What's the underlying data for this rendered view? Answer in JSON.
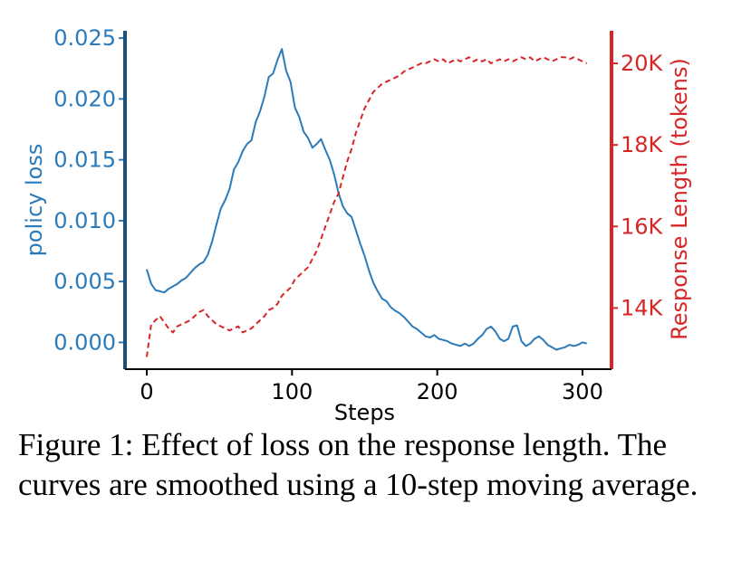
{
  "figure": {
    "caption": "Figure 1: Effect of loss on the response length. The curves are smoothed using a 10-step moving average."
  },
  "chart_data": {
    "type": "line",
    "xlabel": "Steps",
    "ylabel_left": "policy loss",
    "ylabel_right": "Response Length (tokens)",
    "xlim": [
      -15,
      320
    ],
    "ylim_left": [
      -0.0022,
      0.0256
    ],
    "ylim_right": [
      12500,
      20800
    ],
    "x_ticks": [
      0,
      100,
      200,
      300
    ],
    "x_tick_labels": [
      "0",
      "100",
      "200",
      "300"
    ],
    "y_left_ticks": [
      0.0,
      0.005,
      0.01,
      0.015,
      0.02,
      0.025
    ],
    "y_left_tick_labels": [
      "0.000",
      "0.005",
      "0.010",
      "0.015",
      "0.020",
      "0.025"
    ],
    "y_right_ticks": [
      14000,
      16000,
      18000,
      20000
    ],
    "y_right_tick_labels": [
      "14K",
      "16K",
      "18K",
      "20K"
    ],
    "grid": false,
    "colors": {
      "loss": "#2b7bba",
      "length": "#d62728"
    },
    "series": [
      {
        "axis": "left",
        "style": "solid",
        "x": [
          0,
          3,
          6,
          9,
          12,
          15,
          18,
          21,
          24,
          27,
          30,
          33,
          36,
          39,
          42,
          45,
          48,
          51,
          54,
          57,
          60,
          63,
          66,
          69,
          72,
          75,
          78,
          81,
          84,
          87,
          90,
          93,
          96,
          99,
          102,
          105,
          108,
          111,
          114,
          117,
          120,
          123,
          126,
          129,
          132,
          135,
          138,
          141,
          144,
          147,
          150,
          153,
          156,
          159,
          162,
          165,
          168,
          171,
          174,
          177,
          180,
          183,
          186,
          189,
          192,
          195,
          198,
          201,
          204,
          207,
          210,
          213,
          216,
          219,
          222,
          225,
          228,
          231,
          234,
          237,
          240,
          243,
          246,
          249,
          252,
          255,
          258,
          261,
          264,
          267,
          270,
          273,
          276,
          279,
          282,
          285,
          288,
          291,
          294,
          297,
          300,
          303
        ],
        "values": [
          0.006,
          0.0048,
          0.0043,
          0.0042,
          0.0041,
          0.0044,
          0.0046,
          0.0048,
          0.0051,
          0.0053,
          0.0057,
          0.0061,
          0.0064,
          0.0066,
          0.0072,
          0.0083,
          0.0097,
          0.011,
          0.0117,
          0.0126,
          0.0142,
          0.0148,
          0.0157,
          0.0163,
          0.0166,
          0.0181,
          0.019,
          0.0202,
          0.0218,
          0.0221,
          0.0232,
          0.0241,
          0.0223,
          0.0214,
          0.0193,
          0.0185,
          0.0173,
          0.0168,
          0.016,
          0.0163,
          0.0167,
          0.0158,
          0.015,
          0.0138,
          0.0123,
          0.0112,
          0.0106,
          0.0103,
          0.0092,
          0.0081,
          0.0071,
          0.0059,
          0.0049,
          0.0042,
          0.0036,
          0.0034,
          0.0029,
          0.0026,
          0.0024,
          0.0021,
          0.0017,
          0.0013,
          0.0011,
          0.0008,
          0.0005,
          0.0004,
          0.0006,
          0.0003,
          0.0002,
          0.0001,
          -0.0001,
          -0.0002,
          -0.0003,
          -0.0001,
          -0.0003,
          -0.0001,
          0.0003,
          0.0006,
          0.0011,
          0.0013,
          0.0009,
          0.0003,
          0.0001,
          0.0003,
          0.0013,
          0.0014,
          0.0001,
          -0.0003,
          -0.0001,
          0.0003,
          0.0005,
          0.0002,
          -0.0002,
          -0.0004,
          -0.0006,
          -0.0005,
          -0.0004,
          -0.0002,
          -0.0003,
          -0.0002,
          0.0,
          -0.0001
        ]
      },
      {
        "axis": "right",
        "style": "dashed",
        "x": [
          0,
          3,
          6,
          9,
          12,
          15,
          18,
          21,
          24,
          27,
          30,
          33,
          36,
          39,
          42,
          45,
          48,
          51,
          54,
          57,
          60,
          63,
          66,
          69,
          72,
          75,
          78,
          81,
          84,
          87,
          90,
          93,
          96,
          99,
          102,
          105,
          108,
          111,
          114,
          117,
          120,
          123,
          126,
          129,
          132,
          135,
          138,
          141,
          144,
          147,
          150,
          153,
          156,
          159,
          162,
          165,
          168,
          171,
          174,
          177,
          180,
          183,
          186,
          189,
          192,
          195,
          198,
          201,
          204,
          207,
          210,
          213,
          216,
          219,
          222,
          225,
          228,
          231,
          234,
          237,
          240,
          243,
          246,
          249,
          252,
          255,
          258,
          261,
          264,
          267,
          270,
          273,
          276,
          279,
          282,
          285,
          288,
          291,
          294,
          297,
          300,
          303
        ],
        "values": [
          12800,
          13600,
          13700,
          13800,
          13650,
          13500,
          13400,
          13550,
          13600,
          13650,
          13700,
          13800,
          13900,
          13950,
          13800,
          13700,
          13600,
          13550,
          13500,
          13450,
          13500,
          13550,
          13400,
          13450,
          13500,
          13600,
          13700,
          13800,
          13950,
          14000,
          14100,
          14300,
          14400,
          14500,
          14700,
          14800,
          14900,
          15000,
          15200,
          15400,
          15700,
          16000,
          16300,
          16600,
          16800,
          17200,
          17600,
          17900,
          18300,
          18600,
          18900,
          19100,
          19300,
          19400,
          19500,
          19550,
          19600,
          19650,
          19700,
          19800,
          19850,
          19900,
          19950,
          20000,
          20000,
          20050,
          20100,
          20050,
          20100,
          20000,
          20050,
          20100,
          20050,
          20100,
          20150,
          20050,
          20100,
          20050,
          20100,
          20000,
          20050,
          20100,
          20050,
          20100,
          20050,
          20100,
          20150,
          20100,
          20150,
          20050,
          20100,
          20150,
          20100,
          20050,
          20100,
          20150,
          20150,
          20100,
          20150,
          20100,
          20050,
          20000
        ]
      }
    ]
  }
}
